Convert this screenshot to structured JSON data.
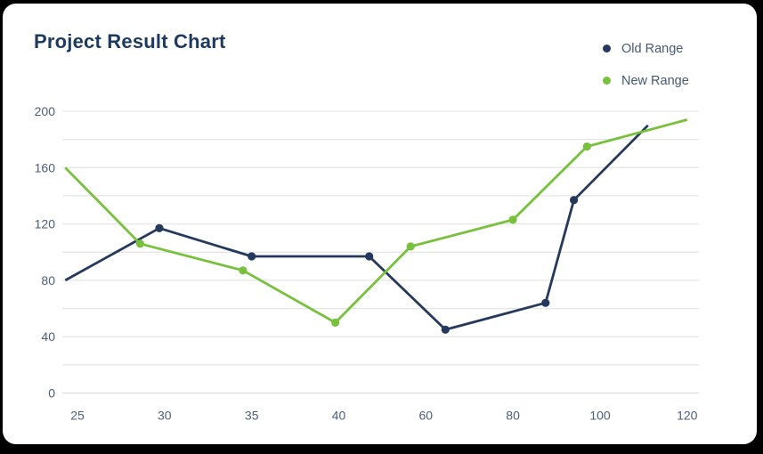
{
  "header": {
    "title": "Project Result Chart"
  },
  "colors": {
    "frame": "#000000",
    "card_bg": "#ffffff",
    "title": "#1e3a5f",
    "legend_text": "#475872",
    "axis_labels": "#4c5d7e",
    "grid": "#e6e6e6",
    "zero_line": "#dcdcdc"
  },
  "chart_data": {
    "type": "line",
    "title": "Project Result Chart",
    "x_ticks": [
      25,
      30,
      35,
      40,
      60,
      80,
      100,
      120
    ],
    "y_ticks": [
      0,
      40,
      80,
      120,
      160,
      200
    ],
    "ylim": [
      0,
      200
    ],
    "y_grid_step": 20,
    "grid": "horizontal-only",
    "legend_position": "top-right",
    "series": [
      {
        "name": "Old Range",
        "color": "#24395c",
        "points": [
          [
            24.3,
            80
          ],
          [
            29.7,
            117
          ],
          [
            35,
            97
          ],
          [
            47,
            97
          ],
          [
            64.5,
            45
          ],
          [
            87.5,
            64
          ],
          [
            94,
            137
          ],
          [
            111,
            190
          ]
        ]
      },
      {
        "name": "New Range",
        "color": "#78c13d",
        "points": [
          [
            24.3,
            160
          ],
          [
            28.6,
            106
          ],
          [
            34.5,
            87
          ],
          [
            39.8,
            50
          ],
          [
            56.5,
            104
          ],
          [
            80,
            123
          ],
          [
            97,
            175
          ],
          [
            120,
            194
          ]
        ]
      }
    ]
  }
}
